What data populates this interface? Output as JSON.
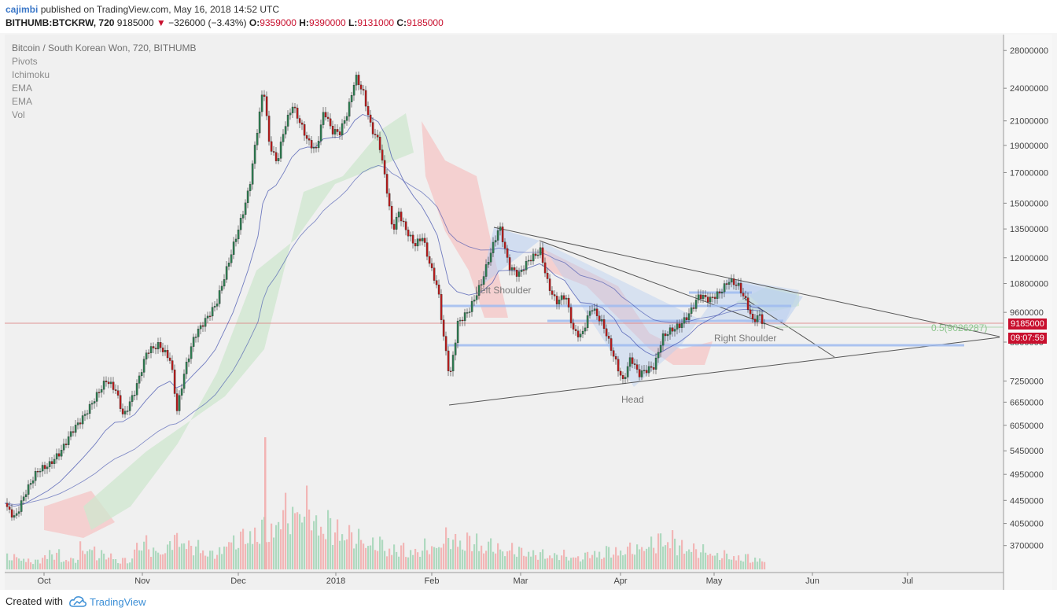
{
  "header": {
    "author": "cajimbi",
    "published_text": "published on TradingView.com, May 16, 2018 14:52 UTC",
    "symbol": "BITHUMB:BTCKRW, 720",
    "last_price": "9185000",
    "change_arrow": "▼",
    "change": "−326000 (−3.43%)",
    "o_label": "O:",
    "o_value": "9359000",
    "h_label": "H:",
    "h_value": "9390000",
    "l_label": "L:",
    "l_value": "9131000",
    "c_label": "C:",
    "c_value": "9185000"
  },
  "studies": {
    "title": "Bitcoin / South Korean Won, 720, BITHUMB",
    "items": [
      "Pivots",
      "Ichimoku",
      "EMA",
      "EMA",
      "Vol"
    ]
  },
  "annotations": {
    "left_shoulder": "Left Shoulder",
    "head": "Head",
    "right_shoulder": "Right Shoulder",
    "fib_label": "0.5(9026287)"
  },
  "price_tags": {
    "last": "9185000",
    "countdown": "09:07:59"
  },
  "footer": {
    "created_with": "Created with",
    "brand": "TradingView"
  },
  "colors": {
    "up": "#2e7d52",
    "down": "#b71c1c",
    "accent": "#3c8fd6",
    "price_tag": "#c8102e"
  },
  "chart_data": {
    "type": "candlestick",
    "title": "Bitcoin / South Korean Won, 720, BITHUMB",
    "x_ticks": [
      "Oct",
      "Nov",
      "Dec",
      "2018",
      "Feb",
      "Mar",
      "Apr",
      "May",
      "Jun",
      "Jul"
    ],
    "y_ticks": [
      28000000,
      24000000,
      21000000,
      19000000,
      17000000,
      15000000,
      13500000,
      12000000,
      10800000,
      9600000,
      8500000,
      7250000,
      6650000,
      6050000,
      5450000,
      4950000,
      4450000,
      4050000,
      3700000
    ],
    "y_scale": "log",
    "ylim": [
      3400000,
      29500000
    ],
    "price_path": [
      [
        0,
        4400000
      ],
      [
        12,
        4150000
      ],
      [
        25,
        4550000
      ],
      [
        40,
        4950000
      ],
      [
        55,
        5100000
      ],
      [
        70,
        5450000
      ],
      [
        85,
        6000000
      ],
      [
        100,
        6350000
      ],
      [
        115,
        6800000
      ],
      [
        128,
        7200000
      ],
      [
        140,
        6900000
      ],
      [
        150,
        6200000
      ],
      [
        165,
        7000000
      ],
      [
        180,
        8300000
      ],
      [
        195,
        8500000
      ],
      [
        210,
        7900000
      ],
      [
        218,
        6400000
      ],
      [
        228,
        7500000
      ],
      [
        240,
        8600000
      ],
      [
        255,
        9300000
      ],
      [
        268,
        10000000
      ],
      [
        278,
        11200000
      ],
      [
        290,
        12800000
      ],
      [
        300,
        14200000
      ],
      [
        310,
        16000000
      ],
      [
        322,
        21000000
      ],
      [
        328,
        24000000
      ],
      [
        335,
        19000000
      ],
      [
        345,
        17500000
      ],
      [
        355,
        20500000
      ],
      [
        365,
        22500000
      ],
      [
        375,
        21000000
      ],
      [
        385,
        19500000
      ],
      [
        395,
        18800000
      ],
      [
        405,
        22000000
      ],
      [
        415,
        20000000
      ],
      [
        425,
        19800000
      ],
      [
        435,
        21500000
      ],
      [
        445,
        25000000
      ],
      [
        455,
        23500000
      ],
      [
        465,
        20500000
      ],
      [
        475,
        19500000
      ],
      [
        485,
        16000000
      ],
      [
        492,
        13500000
      ],
      [
        500,
        14500000
      ],
      [
        508,
        13500000
      ],
      [
        520,
        12500000
      ],
      [
        530,
        12900000
      ],
      [
        540,
        11500000
      ],
      [
        550,
        10500000
      ],
      [
        557,
        8700000
      ],
      [
        565,
        7400000
      ],
      [
        575,
        9300000
      ],
      [
        590,
        9800000
      ],
      [
        605,
        10800000
      ],
      [
        620,
        12500000
      ],
      [
        628,
        13500000
      ],
      [
        640,
        11500000
      ],
      [
        652,
        11200000
      ],
      [
        665,
        12000000
      ],
      [
        680,
        12500000
      ],
      [
        690,
        10800000
      ],
      [
        700,
        10000000
      ],
      [
        712,
        10200000
      ],
      [
        722,
        8800000
      ],
      [
        732,
        8600000
      ],
      [
        745,
        9800000
      ],
      [
        760,
        9200000
      ],
      [
        775,
        8000000
      ],
      [
        785,
        7300000
      ],
      [
        795,
        8000000
      ],
      [
        805,
        7400000
      ],
      [
        815,
        7500000
      ],
      [
        825,
        7600000
      ],
      [
        835,
        8600000
      ],
      [
        845,
        8900000
      ],
      [
        858,
        9200000
      ],
      [
        870,
        9700000
      ],
      [
        882,
        10400000
      ],
      [
        895,
        10100000
      ],
      [
        908,
        10300000
      ],
      [
        920,
        10800000
      ],
      [
        932,
        10600000
      ],
      [
        942,
        10000000
      ],
      [
        950,
        9300000
      ],
      [
        958,
        9600000
      ],
      [
        966,
        9185000
      ]
    ],
    "volume": {
      "ylim": [
        0,
        100
      ],
      "sample": [
        12,
        8,
        15,
        10,
        20,
        14,
        9,
        25,
        18,
        30,
        22,
        16,
        28,
        35,
        40,
        55,
        60,
        45,
        38,
        30,
        25,
        20,
        18,
        22,
        30,
        28,
        24,
        20,
        18,
        15,
        14,
        12,
        16,
        18,
        20,
        24,
        30,
        22,
        18,
        14,
        12,
        10
      ]
    },
    "grid": true,
    "legend": "top-left"
  }
}
